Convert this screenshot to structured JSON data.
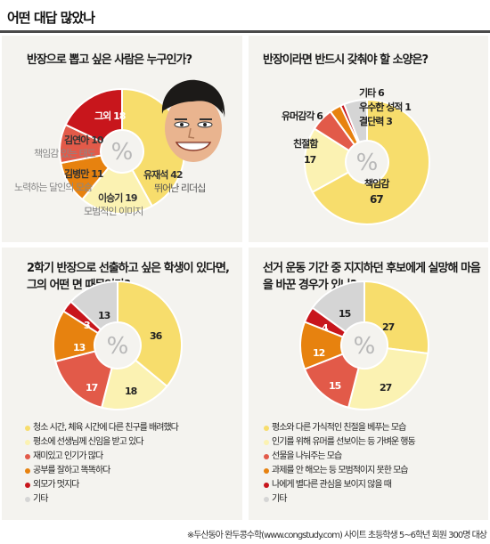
{
  "page_title": "어떤 대답 많았나",
  "source": "※두산동아 완두콩수학(www.congstudy.com) 사이트 초등학생 5~6학년 회원 300명 대상",
  "center_symbol": "%",
  "colors": {
    "red": "#c8161c",
    "orange": "#e7820f",
    "salmon": "#e25a49",
    "yellow": "#f7dd6c",
    "pale": "#fbf2b2",
    "gray": "#d5d5d5"
  },
  "chart_data": [
    {
      "type": "pie",
      "title": "반장으로 뽑고 싶은 사람은 누구인가?",
      "categories": [
        "유재석",
        "이승기",
        "김병만",
        "김연아",
        "그외"
      ],
      "values": [
        42,
        19,
        11,
        10,
        18
      ],
      "descriptions": [
        "뛰어난 리더십",
        "모범적인 이미지",
        "노력하는 달인의 모습",
        "책임감 있는 태도",
        ""
      ],
      "labels": [
        "유재석 42",
        "이승기 19",
        "김병만 11",
        "김연아 10",
        "그외 18"
      ],
      "colors": [
        "#f7dd6c",
        "#fbf2b2",
        "#e7820f",
        "#e25a49",
        "#c8161c"
      ]
    },
    {
      "type": "pie",
      "title": "반장이라면 반드시 갖춰야 할 소양은?",
      "categories": [
        "책임감",
        "친절함",
        "유머감각",
        "결단력",
        "우수한 성적",
        "기타"
      ],
      "values": [
        67,
        17,
        6,
        3,
        1,
        6
      ],
      "labels": [
        "책임감 67",
        "친절함 17",
        "유머감각 6",
        "결단력 3",
        "우수한 성적 1",
        "기타 6"
      ],
      "colors": [
        "#f7dd6c",
        "#fbf2b2",
        "#e25a49",
        "#e7820f",
        "#c8161c",
        "#d5d5d5"
      ]
    },
    {
      "type": "pie",
      "title": "2학기 반장으로 선출하고 싶은 학생이 있다면, 그의 어떤 면 때문인가?",
      "categories": [
        "청소 시간, 체육 시간에 다른 친구를 배려했다",
        "평소에 선생님께 신임을 받고 있다",
        "재미있고 인기가 많다",
        "공부를 잘하고 똑똑하다",
        "외모가 멋지다",
        "기타"
      ],
      "values": [
        36,
        18,
        17,
        13,
        3,
        13
      ],
      "colors": [
        "#f7dd6c",
        "#fbf2b2",
        "#e25a49",
        "#e7820f",
        "#c8161c",
        "#d5d5d5"
      ]
    },
    {
      "type": "pie",
      "title": "선거 운동 기간 중 지지하던 후보에게 실망해 마음을 바꾼 경우가 있나?",
      "categories": [
        "평소와 다른 가식적인 친절을 베푸는 모습",
        "인기를 위해 유머를 선보이는 등 가벼운 행동",
        "선물을 나눠주는 모습",
        "과제를 안 해오는 등 모범적이지 못한 모습",
        "나에게 별다른 관심을 보이지 않을 때",
        "기타"
      ],
      "values": [
        27,
        27,
        15,
        12,
        4,
        15
      ],
      "colors": [
        "#f7dd6c",
        "#fbf2b2",
        "#e25a49",
        "#e7820f",
        "#c8161c",
        "#d5d5d5"
      ]
    }
  ]
}
